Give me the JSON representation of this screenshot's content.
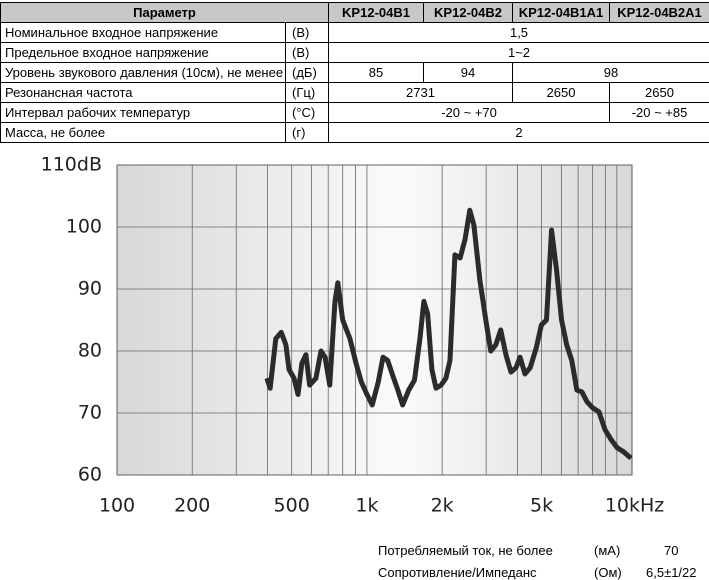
{
  "table": {
    "header": [
      "Параметр",
      "KP12-04B1",
      "KP12-04B2",
      "KP12-04B1A1",
      "KP12-04B2A1"
    ],
    "rows": [
      {
        "param": "Номинальное входное напряжение",
        "unit": "(В)",
        "cells": [
          "1,5"
        ]
      },
      {
        "param": "Предельное входное напряжение",
        "unit": "(В)",
        "cells": [
          "1~2"
        ]
      },
      {
        "param": "Уровень звукового давления (10см), не менее",
        "unit": "(дБ)",
        "cells": [
          "85",
          "94",
          "98"
        ]
      },
      {
        "param": "Резонансная частота",
        "unit": "(Гц)",
        "cells": [
          "2731",
          "2650",
          "2650"
        ]
      },
      {
        "param": "Интервал рабочих температур",
        "unit": "(°C)",
        "cells": [
          "-20 ~ +70",
          "-20 ~ +85"
        ]
      },
      {
        "param": "Масса, не более",
        "unit": "(г)",
        "cells": [
          "2"
        ]
      }
    ]
  },
  "chart_data": {
    "type": "line",
    "log_x": true,
    "x": [
      398,
      410,
      432,
      454,
      474,
      488,
      511,
      530,
      549,
      570,
      590,
      625,
      655,
      680,
      710,
      745,
      765,
      800,
      855,
      905,
      950,
      1000,
      1050,
      1110,
      1160,
      1210,
      1270,
      1330,
      1390,
      1470,
      1550,
      1630,
      1690,
      1750,
      1820,
      1890,
      1980,
      2070,
      2150,
      2250,
      2360,
      2470,
      2580,
      2680,
      2830,
      2990,
      3130,
      3280,
      3430,
      3600,
      3770,
      3950,
      4100,
      4290,
      4500,
      4760,
      4990,
      5230,
      5480,
      5740,
      6010,
      6300,
      6600,
      6920,
      7250,
      7600,
      8020,
      8480,
      8970,
      9490,
      10030,
      10600,
      11400
    ],
    "series": [
      {
        "color": "#2b2b2b",
        "values": [
          75.6,
          74,
          82,
          83,
          81,
          77,
          75.6,
          73,
          78,
          79.4,
          74.5,
          75.6,
          80,
          79,
          74.5,
          88,
          91,
          85,
          82,
          78,
          75,
          73,
          71.3,
          75,
          79,
          78.5,
          76,
          73.7,
          71.3,
          73.7,
          75.3,
          82,
          88,
          86,
          77,
          74,
          74.5,
          75.6,
          78.5,
          95.5,
          95,
          98,
          102.7,
          100.3,
          91.5,
          85,
          80,
          81,
          83.4,
          79.4,
          76.6,
          77.3,
          79,
          76.3,
          77.3,
          80.5,
          84.2,
          85,
          99.5,
          93,
          85,
          81,
          78.5,
          73.7,
          73.4,
          71.8,
          70.8,
          70.2,
          67.3,
          65.7,
          64.4,
          63.8,
          62.7
        ]
      }
    ],
    "xlim": [
      100,
      11500
    ],
    "xticks": [
      100,
      200,
      500,
      {
        "value": 1000,
        "label": "1k"
      },
      {
        "value": 2000,
        "label": "2k"
      },
      {
        "value": 5000,
        "label": "5k"
      },
      {
        "value": 10000,
        "label": "10kHz"
      }
    ],
    "xgrid": [
      100,
      200,
      300,
      400,
      500,
      600,
      700,
      800,
      900,
      1000,
      2000,
      3000,
      4000,
      5000,
      6000,
      7000,
      8000,
      9000,
      10000
    ],
    "ylim": [
      60,
      110
    ],
    "yticks": [
      60,
      70,
      80,
      90,
      100,
      {
        "value": 110,
        "label": "110dB"
      }
    ],
    "grid": true
  },
  "footer": [
    {
      "label": "Потребляемый ток, не более",
      "unit": "(мА)",
      "value": "70"
    },
    {
      "label": "Сопротивление/Импеданс",
      "unit": "(Ом)",
      "value": "6,5±1/22"
    }
  ]
}
